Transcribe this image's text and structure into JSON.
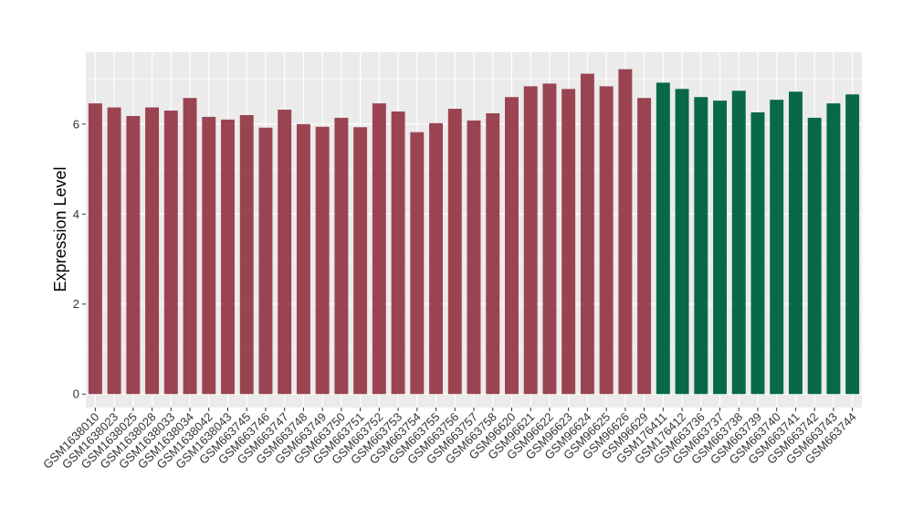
{
  "chart_data": {
    "type": "bar",
    "title": "",
    "xlabel": "",
    "ylabel": "Expression Level",
    "ylim": [
      -0.3,
      7.6
    ],
    "yticks": [
      0,
      2,
      4,
      6
    ],
    "grid": true,
    "legend": "none",
    "colors": {
      "group_a": "#9a4452",
      "group_b": "#086848",
      "panel": "#ebebeb",
      "grid": "#ffffff"
    },
    "categories": [
      "GSM1638010",
      "GSM1638023",
      "GSM1638025",
      "GSM1638028",
      "GSM1638033",
      "GSM1638034",
      "GSM1638042",
      "GSM1638043",
      "GSM663745",
      "GSM663746",
      "GSM663747",
      "GSM663748",
      "GSM663749",
      "GSM663750",
      "GSM663751",
      "GSM663752",
      "GSM663753",
      "GSM663754",
      "GSM663755",
      "GSM663756",
      "GSM663757",
      "GSM663758",
      "GSM96620",
      "GSM96621",
      "GSM96622",
      "GSM96623",
      "GSM96624",
      "GSM96625",
      "GSM96626",
      "GSM96629",
      "GSM176411",
      "GSM176412",
      "GSM663736",
      "GSM663737",
      "GSM663738",
      "GSM663739",
      "GSM663740",
      "GSM663741",
      "GSM663742",
      "GSM663743",
      "GSM663744"
    ],
    "values": [
      6.46,
      6.37,
      6.18,
      6.37,
      6.3,
      6.58,
      6.16,
      6.1,
      6.2,
      5.92,
      6.32,
      6.0,
      5.94,
      6.14,
      5.93,
      6.46,
      6.28,
      5.82,
      6.02,
      6.34,
      6.08,
      6.24,
      6.6,
      6.84,
      6.9,
      6.78,
      7.12,
      6.84,
      7.22,
      6.58,
      6.92,
      6.78,
      6.6,
      6.52,
      6.74,
      6.26,
      6.54,
      6.72,
      6.14,
      6.46,
      6.66
    ],
    "groups": [
      "a",
      "a",
      "a",
      "a",
      "a",
      "a",
      "a",
      "a",
      "a",
      "a",
      "a",
      "a",
      "a",
      "a",
      "a",
      "a",
      "a",
      "a",
      "a",
      "a",
      "a",
      "a",
      "a",
      "a",
      "a",
      "a",
      "a",
      "a",
      "a",
      "a",
      "b",
      "b",
      "b",
      "b",
      "b",
      "b",
      "b",
      "b",
      "b",
      "b",
      "b"
    ]
  }
}
